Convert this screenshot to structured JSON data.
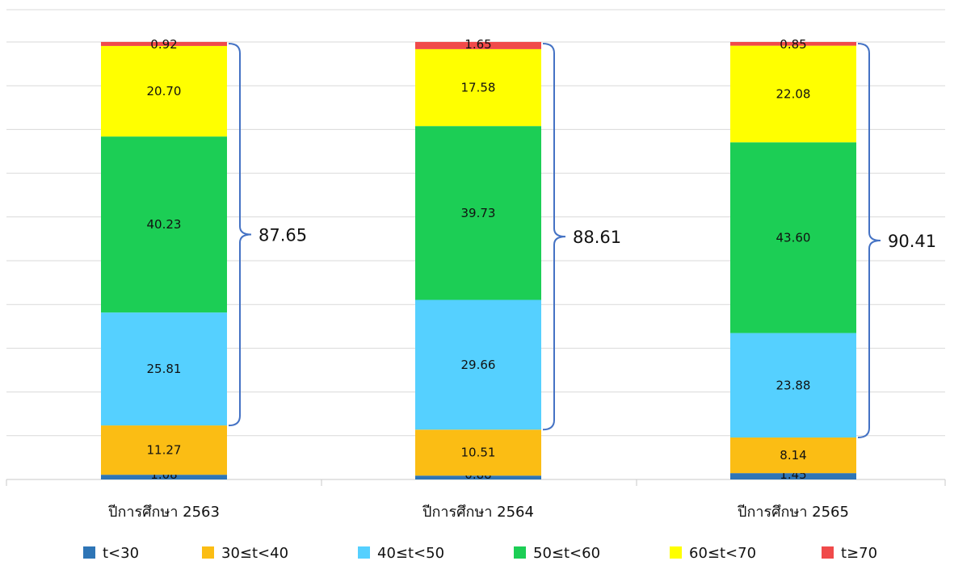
{
  "chart_data": {
    "type": "bar",
    "stacked": true,
    "categories": [
      "ปีการศึกษา 2563",
      "ปีการศึกษา 2564",
      "ปีการศึกษา 2565"
    ],
    "series": [
      {
        "name": "t<30",
        "color": "#2e75b6",
        "values": [
          1.08,
          0.88,
          1.45
        ]
      },
      {
        "name": "30≤t<40",
        "color": "#fbbd14",
        "values": [
          11.27,
          10.51,
          8.14
        ]
      },
      {
        "name": "40≤t<50",
        "color": "#55d0ff",
        "values": [
          25.81,
          29.66,
          23.88
        ]
      },
      {
        "name": "50≤t<60",
        "color": "#1cce55",
        "values": [
          40.23,
          39.73,
          43.6
        ]
      },
      {
        "name": "60≤t<70",
        "color": "#ffff00",
        "values": [
          20.7,
          17.58,
          22.08
        ]
      },
      {
        "name": "t≥70",
        "color": "#f04a4a",
        "values": [
          0.92,
          1.65,
          0.85
        ]
      }
    ],
    "value_labels": [
      [
        "1.08",
        "0.88",
        "1.45"
      ],
      [
        "11.27",
        "10.51",
        "8.14"
      ],
      [
        "25.81",
        "29.66",
        "23.88"
      ],
      [
        "40.23",
        "39.73",
        "43.60"
      ],
      [
        "20.70",
        "17.58",
        "22.08"
      ],
      [
        "0.92",
        "1.65",
        "0.85"
      ]
    ],
    "brace_totals": [
      "87.65",
      "88.61",
      "90.41"
    ],
    "brace_spans_series": [
      "40≤t<50",
      "50≤t<60",
      "60≤t<70",
      "t≥70"
    ],
    "ylim": [
      0,
      100
    ],
    "grid": true,
    "legend_position": "bottom",
    "brace_color": "#4472c4",
    "grid_color": "#d9d9d9"
  }
}
